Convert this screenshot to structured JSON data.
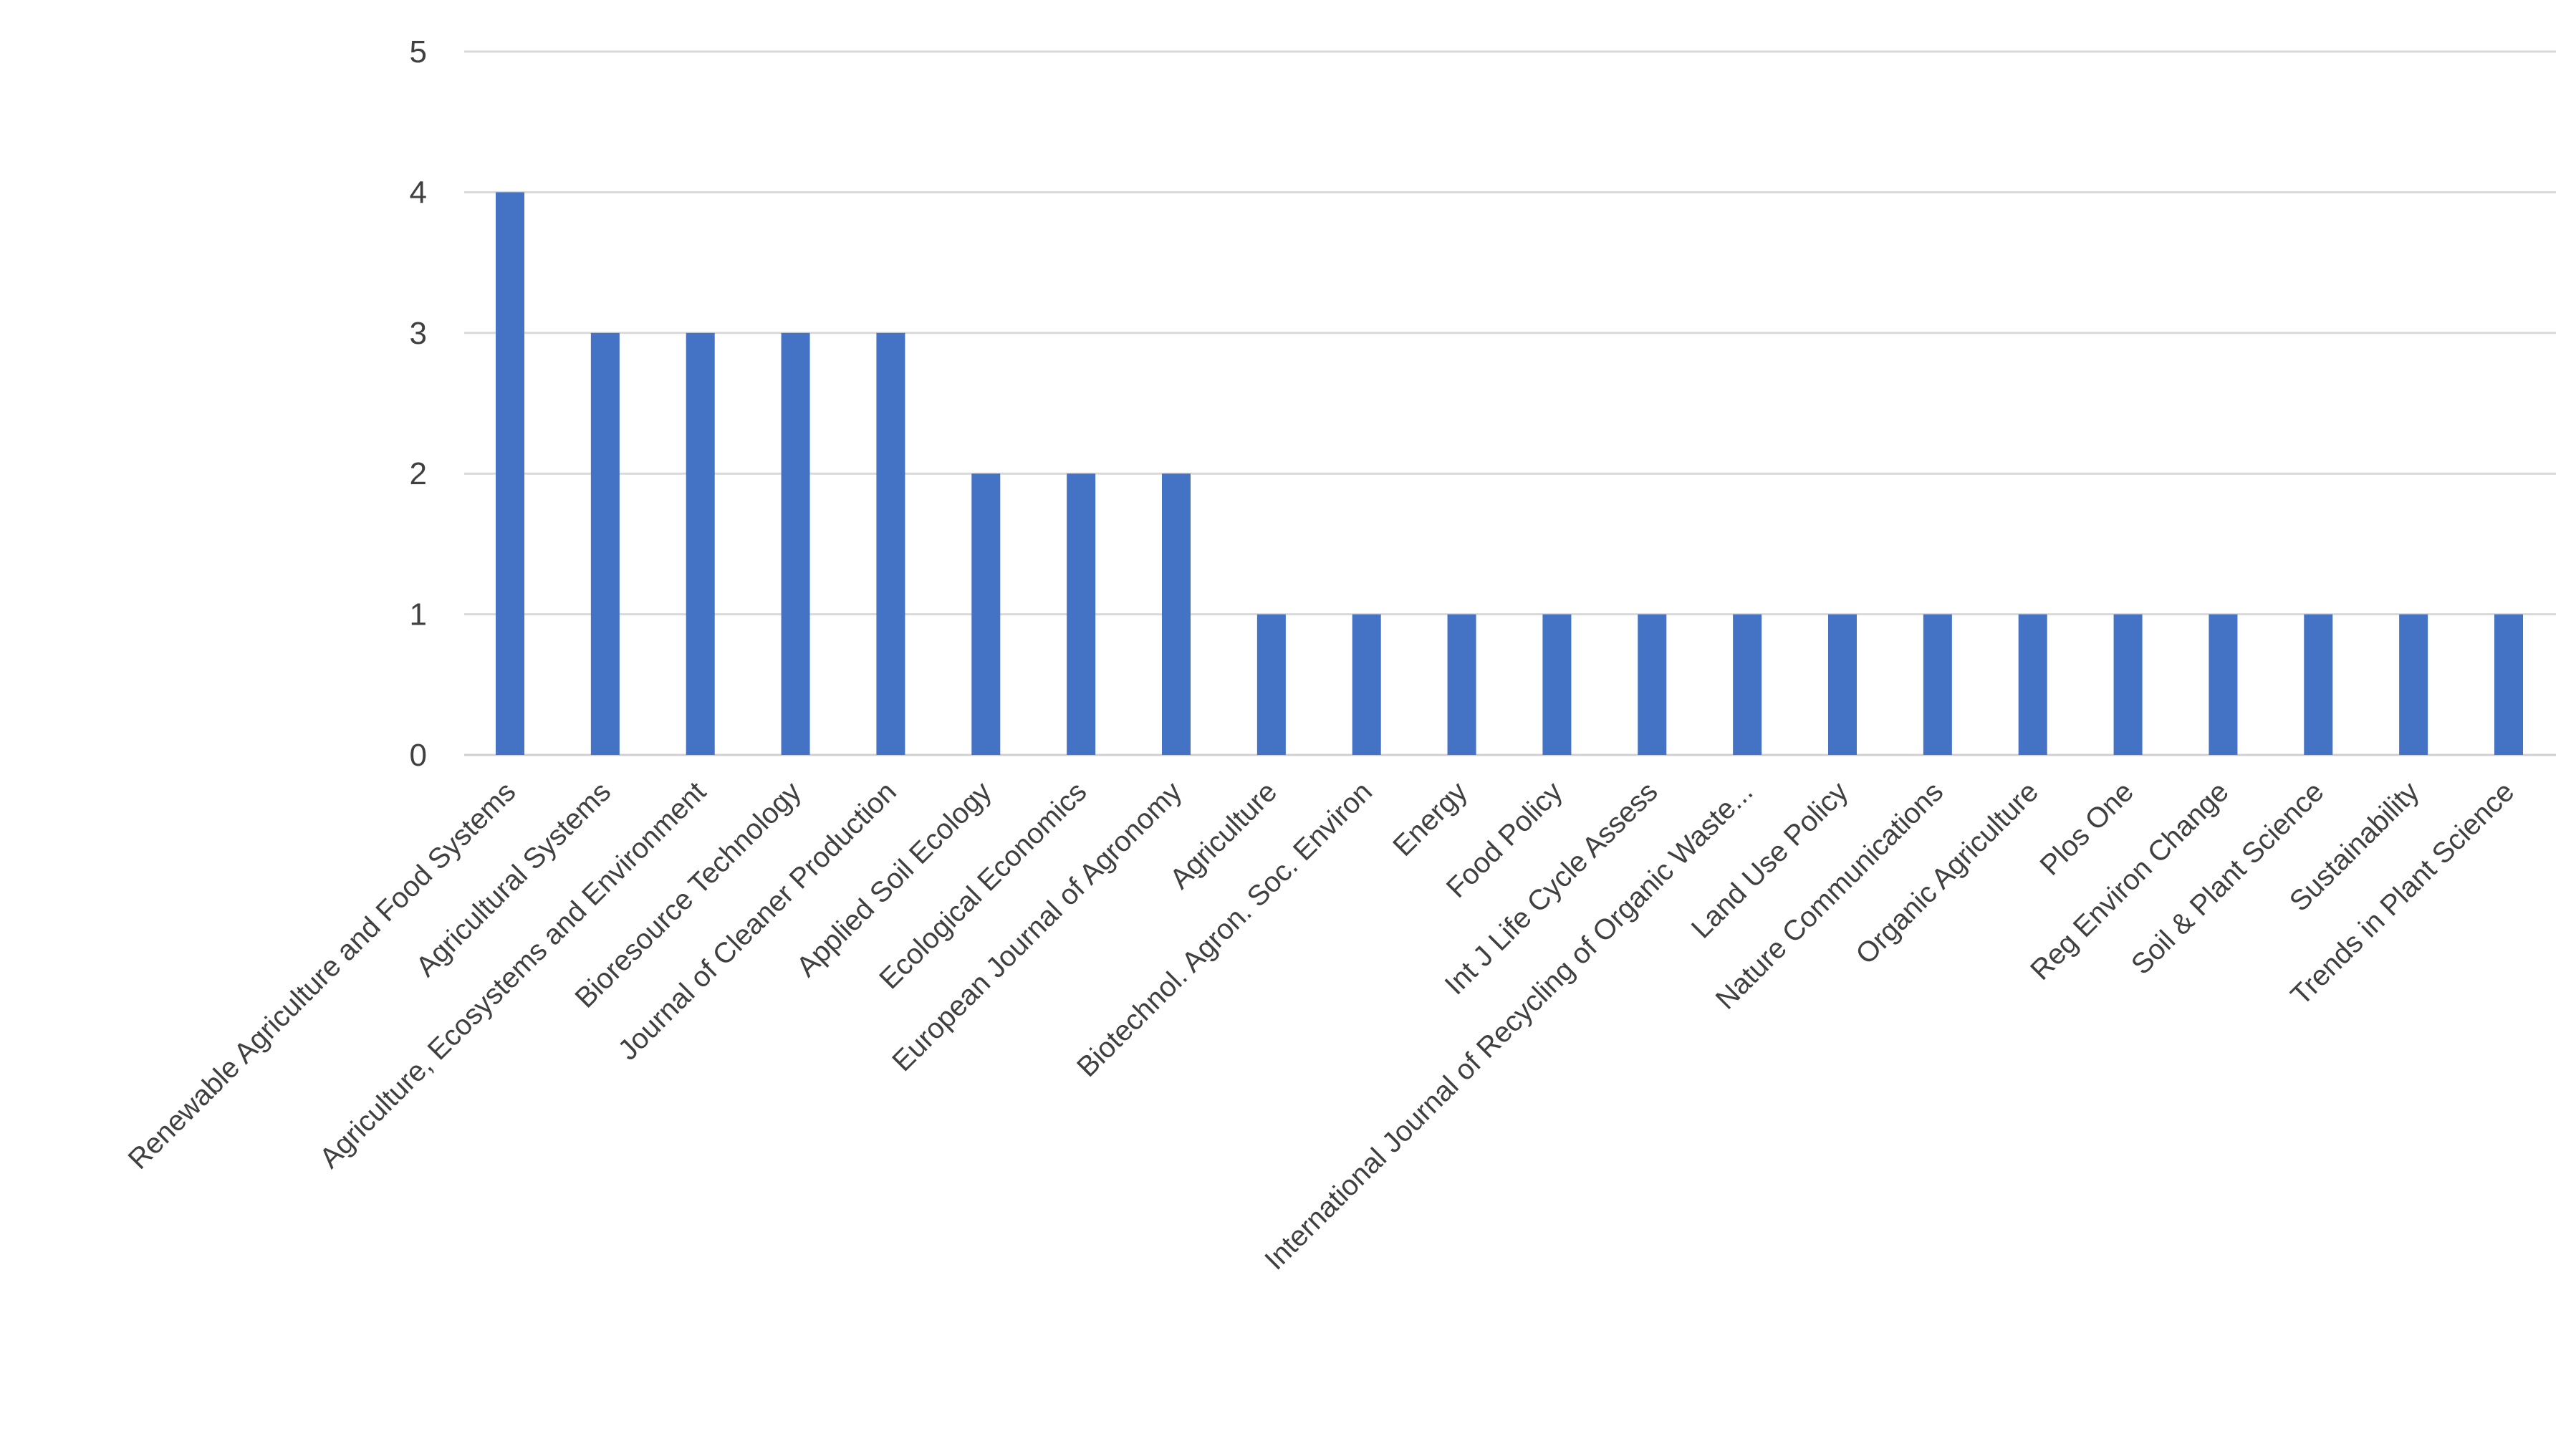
{
  "chart_data": {
    "type": "bar",
    "title": "",
    "xlabel": "",
    "ylabel": "",
    "ylim": [
      0,
      5
    ],
    "yticks": [
      0,
      1,
      2,
      3,
      4,
      5
    ],
    "grid": true,
    "legend": "none",
    "bar_color": "#4472c4",
    "categories": [
      "Renewable Agriculture and Food Systems",
      "Agricultural Systems",
      "Agriculture, Ecosystems and Environment",
      "Bioresource Technology",
      "Journal of Cleaner Production",
      "Applied Soil Ecology",
      "Ecological Economics",
      "European Journal of Agronomy",
      "Agriculture",
      "Biotechnol. Agron. Soc. Environ",
      "Energy",
      "Food Policy",
      "Int J Life Cycle Assess",
      "International Journal of Recycling of Organic Waste...",
      "Land Use Policy",
      "Nature Communications",
      "Organic Agriculture",
      "Plos One",
      "Reg Environ Change",
      "Soil & Plant Science",
      "Sustainability",
      "Trends in Plant Science"
    ],
    "values": [
      4,
      3,
      3,
      3,
      3,
      2,
      2,
      2,
      1,
      1,
      1,
      1,
      1,
      1,
      1,
      1,
      1,
      1,
      1,
      1,
      1,
      1
    ]
  }
}
